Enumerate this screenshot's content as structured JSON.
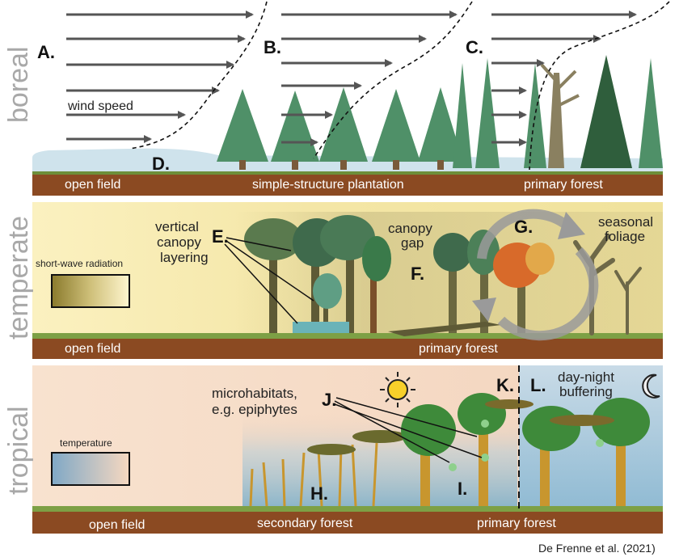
{
  "rows": {
    "boreal": "boreal",
    "temperate": "temperate",
    "tropical": "tropical"
  },
  "letters": {
    "a": "A.",
    "b": "B.",
    "c": "C.",
    "d": "D.",
    "e": "E.",
    "f": "F.",
    "g": "G.",
    "h": "H.",
    "i": "I.",
    "j": "J.",
    "k": "K.",
    "l": "L."
  },
  "boreal": {
    "wind_label": "wind speed",
    "ground": [
      "open field",
      "simple-structure plantation",
      "primary forest"
    ]
  },
  "temperate": {
    "radiation_label": "short-wave radiation",
    "vertical_label": [
      "vertical",
      "canopy",
      "layering"
    ],
    "gap_label": [
      "canopy",
      "gap"
    ],
    "seasonal_label": [
      "seasonal",
      "foliage"
    ],
    "ground": [
      "open field",
      "primary forest"
    ]
  },
  "tropical": {
    "temperature_label": "temperature",
    "micro_label": [
      "microhabitats,",
      "e.g. epiphytes"
    ],
    "daynight_label": [
      "day-night",
      "buffering"
    ],
    "ground": [
      "open field",
      "secondary forest",
      "primary forest"
    ]
  },
  "icons": [
    "sun-icon",
    "moon-icon",
    "wind-arrow-icon",
    "cycle-arrow-icon"
  ],
  "colors": {
    "ground_brown": "#8b4a22",
    "conifer": "#4f9068",
    "conifer_dark": "#2f5e3c",
    "temperate_bg": "#f3e6a8",
    "tropical_bg": "#f6dcc6",
    "tropical_cool": "#7eaec9"
  },
  "credit": "De Frenne et al. (2021)"
}
